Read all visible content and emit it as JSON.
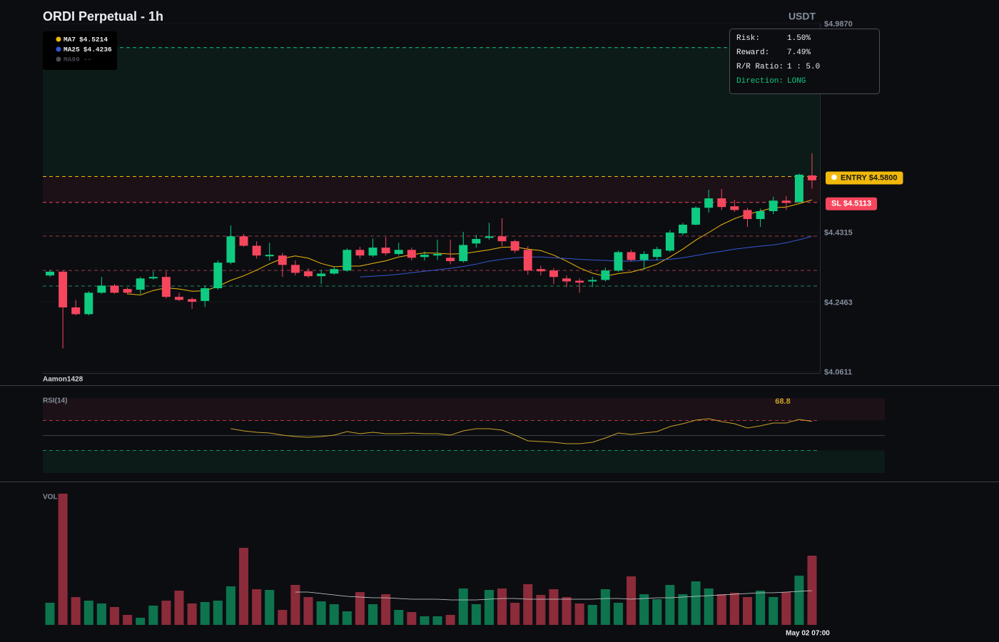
{
  "chart_data": [
    {
      "type": "candlestick",
      "title": "ORDI Perpetual - 1h",
      "currency": "USDT",
      "watermark": "Aamon1428",
      "ylim": [
        4.0611,
        4.987
      ],
      "yticks": [
        {
          "value": 4.0611,
          "label": "$4.0611"
        },
        {
          "value": 4.2463,
          "label": "$4.2463"
        },
        {
          "value": 4.4315,
          "label": "$4.4315"
        },
        {
          "value": 4.987,
          "label": "$4.9870"
        }
      ],
      "up_color": "#0ecb81",
      "down_color": "#f6465d",
      "open": [
        4.317,
        4.327,
        4.232,
        4.214,
        4.271,
        4.29,
        4.281,
        4.279,
        4.309,
        4.313,
        4.26,
        4.254,
        4.249,
        4.283,
        4.351,
        4.421,
        4.396,
        4.368,
        4.37,
        4.345,
        4.328,
        4.315,
        4.322,
        4.33,
        4.385,
        4.37,
        4.391,
        4.374,
        4.385,
        4.366,
        4.37,
        4.364,
        4.355,
        4.402,
        4.417,
        4.421,
        4.408,
        4.385,
        4.334,
        4.33,
        4.309,
        4.303,
        4.301,
        4.305,
        4.33,
        4.379,
        4.358,
        4.366,
        4.383,
        4.429,
        4.452,
        4.497,
        4.522,
        4.501,
        4.491,
        4.467,
        4.488,
        4.516,
        4.512,
        4.583
      ],
      "high": [
        4.332,
        4.33,
        4.252,
        4.275,
        4.313,
        4.294,
        4.285,
        4.313,
        4.328,
        4.328,
        4.271,
        4.258,
        4.29,
        4.357,
        4.45,
        4.427,
        4.408,
        4.404,
        4.377,
        4.357,
        4.336,
        4.332,
        4.339,
        4.389,
        4.393,
        4.415,
        4.419,
        4.404,
        4.391,
        4.381,
        4.412,
        4.412,
        4.433,
        4.425,
        4.457,
        4.469,
        4.412,
        4.395,
        4.343,
        4.336,
        4.317,
        4.309,
        4.313,
        4.338,
        4.383,
        4.385,
        4.381,
        4.393,
        4.438,
        4.457,
        4.501,
        4.545,
        4.547,
        4.518,
        4.497,
        4.495,
        4.526,
        4.528,
        4.588,
        4.642
      ],
      "low": [
        4.313,
        4.123,
        4.211,
        4.211,
        4.268,
        4.268,
        4.266,
        4.268,
        4.306,
        4.256,
        4.249,
        4.228,
        4.233,
        4.279,
        4.347,
        4.393,
        4.362,
        4.357,
        4.313,
        4.317,
        4.311,
        4.294,
        4.319,
        4.327,
        4.362,
        4.366,
        4.37,
        4.37,
        4.357,
        4.357,
        4.358,
        4.347,
        4.351,
        4.391,
        4.412,
        4.395,
        4.377,
        4.319,
        4.317,
        4.294,
        4.286,
        4.271,
        4.286,
        4.301,
        4.327,
        4.355,
        4.332,
        4.357,
        4.379,
        4.423,
        4.45,
        4.484,
        4.491,
        4.486,
        4.446,
        4.446,
        4.48,
        4.491,
        4.509,
        4.548
      ],
      "close": [
        4.327,
        4.232,
        4.214,
        4.271,
        4.29,
        4.271,
        4.271,
        4.309,
        4.313,
        4.26,
        4.252,
        4.247,
        4.283,
        4.351,
        4.421,
        4.396,
        4.37,
        4.372,
        4.345,
        4.324,
        4.315,
        4.322,
        4.334,
        4.385,
        4.37,
        4.391,
        4.376,
        4.385,
        4.364,
        4.372,
        4.374,
        4.355,
        4.398,
        4.414,
        4.421,
        4.408,
        4.383,
        4.33,
        4.328,
        4.313,
        4.301,
        4.298,
        4.305,
        4.33,
        4.379,
        4.358,
        4.374,
        4.387,
        4.431,
        4.452,
        4.497,
        4.522,
        4.499,
        4.491,
        4.467,
        4.488,
        4.516,
        4.51,
        4.585,
        4.57
      ],
      "series": [
        {
          "name": "MA7",
          "legend_value": "$4.5214",
          "color": "#f0b90b",
          "values": [
            null,
            null,
            null,
            null,
            null,
            null,
            4.268,
            4.265,
            4.277,
            4.284,
            4.281,
            4.275,
            4.276,
            4.288,
            4.304,
            4.316,
            4.331,
            4.348,
            4.362,
            4.369,
            4.363,
            4.349,
            4.34,
            4.342,
            4.342,
            4.349,
            4.356,
            4.366,
            4.372,
            4.377,
            4.376,
            4.374,
            4.375,
            4.38,
            4.385,
            4.392,
            4.393,
            4.387,
            4.383,
            4.371,
            4.355,
            4.337,
            4.323,
            4.315,
            4.322,
            4.326,
            4.335,
            4.347,
            4.366,
            4.387,
            4.411,
            4.431,
            4.452,
            4.468,
            4.48,
            4.488,
            4.497,
            4.499,
            4.508,
            4.518
          ]
        },
        {
          "name": "MA25",
          "legend_value": "$4.4236",
          "color": "#3358d4",
          "values": [
            null,
            null,
            null,
            null,
            null,
            null,
            null,
            null,
            null,
            null,
            null,
            null,
            null,
            null,
            null,
            null,
            null,
            null,
            null,
            null,
            null,
            null,
            null,
            null,
            4.313,
            4.315,
            4.317,
            4.32,
            4.324,
            4.328,
            4.332,
            4.336,
            4.341,
            4.347,
            4.355,
            4.36,
            4.364,
            4.366,
            4.366,
            4.364,
            4.362,
            4.36,
            4.358,
            4.357,
            4.355,
            4.355,
            4.357,
            4.358,
            4.36,
            4.364,
            4.37,
            4.376,
            4.381,
            4.387,
            4.391,
            4.395,
            4.398,
            4.404,
            4.412,
            4.421
          ]
        },
        {
          "name": "MA99",
          "legend_value": "--",
          "color": "#4a4d55"
        }
      ],
      "zones": [
        {
          "from": 4.58,
          "to": 4.923,
          "color": "#0ecb81"
        },
        {
          "from": 4.5113,
          "to": 4.58,
          "color": "#f6465d"
        }
      ],
      "levels": [
        {
          "value": 4.923,
          "color": "#0ecb81"
        },
        {
          "value": 4.58,
          "color": "#f0b90b",
          "label": "ENTRY $4.5800",
          "icon": true,
          "badge_text": "#1a1a1a"
        },
        {
          "value": 4.5113,
          "color": "#f6465d",
          "label": "SL $4.5113",
          "badge_text": "#ffffff"
        },
        {
          "value": 4.4215,
          "color": "#9a3a4c"
        },
        {
          "value": 4.3304,
          "color": "#9a3a4c"
        },
        {
          "value": 4.2888,
          "color": "#1f8a5f"
        }
      ],
      "info": [
        {
          "label": "Risk:",
          "value": "1.50%"
        },
        {
          "label": "Reward:",
          "value": "7.49%"
        },
        {
          "label": "R/R Ratio:",
          "value": "1 : 5.0"
        },
        {
          "label": "Direction:",
          "value": "LONG",
          "color": "#0ecb81"
        }
      ]
    },
    {
      "type": "line",
      "title": "RSI(14)",
      "ylim": [
        0,
        100
      ],
      "levels": [
        {
          "value": 70,
          "color": "#f6465d",
          "dash": true,
          "zone": "above"
        },
        {
          "value": 50,
          "color": "#3a3e46"
        },
        {
          "value": 30,
          "color": "#0ecb81",
          "dash": true,
          "zone": "below"
        }
      ],
      "series": [
        {
          "color": "#c9a227",
          "values": [
            null,
            null,
            null,
            null,
            null,
            null,
            null,
            null,
            null,
            null,
            null,
            null,
            null,
            null,
            59.0,
            56.2,
            54.3,
            53.3,
            50.5,
            48.6,
            47.6,
            48.6,
            50.5,
            55.2,
            52.4,
            54.3,
            52.4,
            52.4,
            53.3,
            52.4,
            52.4,
            50.5,
            56.2,
            59.0,
            59.0,
            57.1,
            50.5,
            42.9,
            41.9,
            41.0,
            39.0,
            39.0,
            41.0,
            46.7,
            53.3,
            51.4,
            53.3,
            55.2,
            61.9,
            65.7,
            70.5,
            72.4,
            68.6,
            65.7,
            60.0,
            62.9,
            66.7,
            66.7,
            71.4,
            68.8
          ]
        }
      ]
    },
    {
      "type": "bar",
      "title": "VOL",
      "ylim": [
        0,
        190
      ],
      "values": [
        31,
        184,
        39,
        34,
        30,
        25,
        14,
        10,
        27,
        34,
        48,
        30,
        32,
        34,
        54,
        108,
        50,
        49,
        21,
        56,
        39,
        33,
        29,
        19,
        46,
        29,
        43,
        21,
        18,
        12,
        12,
        14,
        51,
        29,
        49,
        51,
        31,
        57,
        42,
        50,
        39,
        30,
        28,
        50,
        31,
        68,
        43,
        36,
        56,
        43,
        61,
        51,
        43,
        45,
        39,
        48,
        39,
        46,
        69,
        97
      ],
      "ma": [
        null,
        null,
        null,
        null,
        null,
        null,
        null,
        null,
        null,
        null,
        null,
        null,
        null,
        null,
        null,
        null,
        null,
        null,
        null,
        46,
        46,
        44,
        42,
        40,
        39,
        38,
        38,
        37,
        36,
        36,
        36,
        35,
        35,
        35,
        36,
        37,
        37,
        36,
        36,
        36,
        36,
        36,
        36,
        37,
        37,
        36,
        37,
        38,
        38,
        39,
        40,
        41,
        42,
        43,
        44,
        45,
        45,
        46,
        47,
        48
      ],
      "ma_color": "#cfd2d6",
      "categories": [
        null,
        null,
        null,
        null,
        null,
        null,
        null,
        null,
        null,
        null,
        null,
        null,
        null,
        null,
        null,
        null,
        null,
        null,
        null,
        null,
        null,
        null,
        null,
        null,
        null,
        null,
        null,
        null,
        null,
        null,
        null,
        null,
        null,
        null,
        null,
        null,
        null,
        null,
        null,
        null,
        null,
        null,
        null,
        null,
        null,
        null,
        null,
        null,
        null,
        null,
        null,
        null,
        null,
        null,
        null,
        null,
        null,
        null,
        null,
        "May 02 07:00"
      ]
    }
  ]
}
